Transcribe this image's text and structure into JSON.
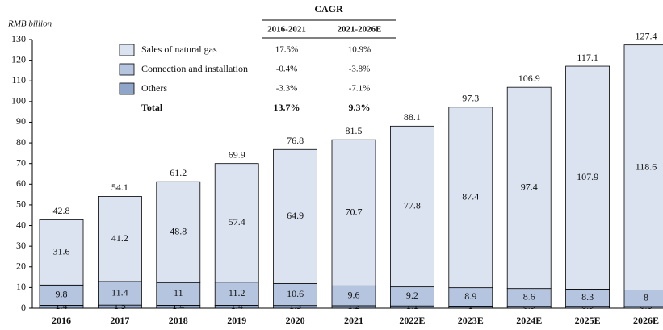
{
  "chart_data": {
    "type": "stacked_bar",
    "y_label": "RMB billion",
    "categories": [
      "2016",
      "2017",
      "2018",
      "2019",
      "2020",
      "2021",
      "2022E",
      "2023E",
      "2024E",
      "2025E",
      "2026E"
    ],
    "series": [
      {
        "name": "Others",
        "color": "#8fa5c9",
        "values": [
          1.4,
          1.5,
          1.4,
          1.4,
          1.3,
          1.2,
          1.1,
          1.0,
          0.9,
          0.9,
          0.8
        ]
      },
      {
        "name": "Connection and installation",
        "color": "#b5c5df",
        "values": [
          9.8,
          11.4,
          11.0,
          11.2,
          10.6,
          9.6,
          9.2,
          8.9,
          8.6,
          8.3,
          8.0
        ]
      },
      {
        "name": "Sales of natural gas",
        "color": "#dbe3f1",
        "values": [
          31.6,
          41.2,
          48.8,
          57.4,
          64.9,
          70.7,
          77.8,
          87.4,
          97.4,
          107.9,
          118.6
        ]
      }
    ],
    "totals": [
      42.8,
      54.1,
      61.2,
      69.9,
      76.8,
      81.5,
      88.1,
      97.3,
      106.9,
      117.1,
      127.4
    ],
    "ylim": [
      0,
      130
    ],
    "yticks": [
      0,
      10,
      20,
      30,
      40,
      50,
      60,
      70,
      80,
      90,
      100,
      110,
      120,
      130
    ],
    "grid": false,
    "cagr_table": {
      "title": "CAGR",
      "columns": [
        "2016-2021",
        "2021-2026E"
      ],
      "rows": [
        {
          "name": "Sales of natural gas",
          "values": [
            "17.5%",
            "10.9%"
          ]
        },
        {
          "name": "Connection and installation",
          "values": [
            "-0.4%",
            "-3.8%"
          ]
        },
        {
          "name": "Others",
          "values": [
            "-3.3%",
            "-7.1%"
          ]
        },
        {
          "name": "Total",
          "values": [
            "13.7%",
            "9.3%"
          ]
        }
      ]
    }
  }
}
